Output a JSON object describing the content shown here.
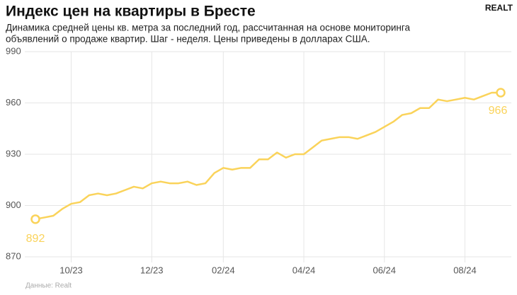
{
  "chart_data": {
    "type": "line",
    "title": "Индекс цен на квартиры в Бресте",
    "subtitle": [
      "Динамика средней цены кв. метра за последний год, рассчитанная на основе мониторинга",
      "объявлений о продаже квартир. Шаг - неделя. Цены приведены в долларах США."
    ],
    "brand": "REALT",
    "source": "Данные: Realt",
    "categories": [
      null,
      null,
      null,
      null,
      "10/23",
      null,
      null,
      null,
      null,
      null,
      null,
      null,
      null,
      "12/23",
      null,
      null,
      null,
      null,
      null,
      null,
      null,
      "02/24",
      null,
      null,
      null,
      null,
      null,
      null,
      null,
      null,
      "04/24",
      null,
      null,
      null,
      null,
      null,
      null,
      null,
      null,
      "06/24",
      null,
      null,
      null,
      null,
      null,
      null,
      null,
      null,
      "08/24",
      null,
      null,
      null,
      null
    ],
    "values": [
      892,
      893,
      894,
      898,
      901,
      902,
      906,
      907,
      906,
      907,
      909,
      911,
      910,
      913,
      914,
      913,
      913,
      914,
      912,
      913,
      919,
      922,
      921,
      922,
      922,
      927,
      927,
      931,
      928,
      930,
      930,
      934,
      938,
      939,
      940,
      940,
      939,
      941,
      943,
      946,
      949,
      953,
      954,
      957,
      957,
      962,
      961,
      962,
      963,
      962,
      964,
      966,
      966
    ],
    "color": "#fad35a",
    "ylim": [
      870,
      990
    ],
    "yticks": [
      870,
      900,
      930,
      960,
      990
    ],
    "grid": true
  }
}
